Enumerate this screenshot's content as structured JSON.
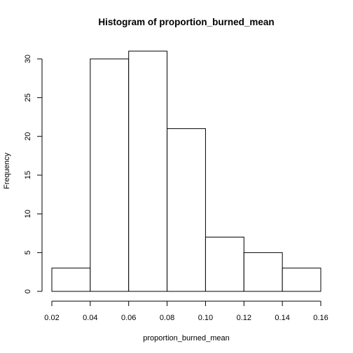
{
  "chart_data": {
    "type": "bar",
    "title": "Histogram of proportion_burned_mean",
    "xlabel": "proportion_burned_mean",
    "ylabel": "Frequency",
    "bins": [
      {
        "from": 0.02,
        "to": 0.04,
        "count": 3
      },
      {
        "from": 0.04,
        "to": 0.06,
        "count": 30
      },
      {
        "from": 0.06,
        "to": 0.08,
        "count": 31
      },
      {
        "from": 0.08,
        "to": 0.1,
        "count": 21
      },
      {
        "from": 0.1,
        "to": 0.12,
        "count": 7
      },
      {
        "from": 0.12,
        "to": 0.14,
        "count": 5
      },
      {
        "from": 0.14,
        "to": 0.16,
        "count": 3
      }
    ],
    "xlim": [
      0.02,
      0.16
    ],
    "ylim": [
      0,
      31
    ],
    "x_ticks": [
      0.02,
      0.04,
      0.06,
      0.08,
      0.1,
      0.12,
      0.14,
      0.16
    ],
    "x_tick_labels": [
      "0.02",
      "0.04",
      "0.06",
      "0.08",
      "0.10",
      "0.12",
      "0.14",
      "0.16"
    ],
    "y_ticks": [
      0,
      5,
      10,
      15,
      20,
      25,
      30
    ],
    "y_tick_labels": [
      "0",
      "5",
      "10",
      "15",
      "20",
      "25",
      "30"
    ],
    "grid": false,
    "legend": "none",
    "bar_fill": "#ffffff",
    "bar_stroke": "#000000"
  }
}
